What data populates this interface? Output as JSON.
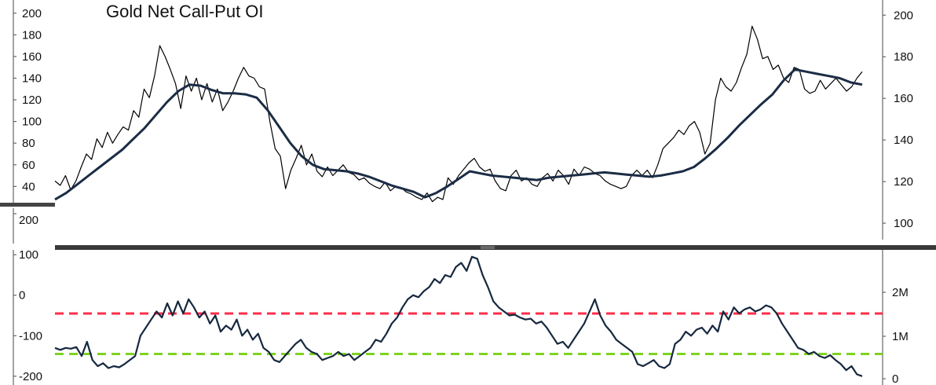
{
  "chart_data": [
    {
      "type": "line",
      "title": "Gold Net Call-Put OI",
      "left_axis": {
        "ticks": [
          40,
          60,
          80,
          100,
          120,
          140,
          160,
          180,
          200
        ],
        "range": [
          25,
          202
        ]
      },
      "right_axis": {
        "ticks": [
          100,
          120,
          140,
          160,
          180,
          200
        ],
        "range": [
          97,
          202
        ]
      },
      "series": [
        {
          "axis": "left",
          "color": "#000000",
          "values": [
            45,
            41,
            50,
            37,
            45,
            58,
            70,
            65,
            84,
            76,
            90,
            80,
            88,
            95,
            92,
            110,
            104,
            130,
            122,
            142,
            170,
            160,
            148,
            135,
            112,
            142,
            128,
            140,
            120,
            135,
            118,
            130,
            110,
            118,
            128,
            140,
            150,
            142,
            140,
            132,
            130,
            100,
            75,
            68,
            38,
            55,
            66,
            78,
            60,
            70,
            54,
            49,
            58,
            50,
            55,
            60,
            53,
            51,
            46,
            48,
            43,
            40,
            38,
            44,
            36,
            40,
            39,
            35,
            33,
            30,
            28,
            34,
            26,
            30,
            28,
            48,
            42,
            50,
            56,
            62,
            66,
            58,
            54,
            56,
            45,
            38,
            36,
            50,
            55,
            45,
            48,
            42,
            40,
            48,
            52,
            45,
            55,
            50,
            42,
            56,
            50,
            58,
            56,
            52,
            50,
            45,
            42,
            40,
            38,
            40,
            50,
            55,
            50,
            55,
            48,
            60,
            75,
            80,
            85,
            92,
            88,
            96,
            100,
            90,
            70,
            80,
            120,
            140,
            132,
            128,
            136,
            150,
            162,
            188,
            176,
            158,
            160,
            148,
            152,
            140,
            136,
            150,
            148,
            130,
            126,
            128,
            138,
            130,
            135,
            140,
            134,
            128,
            132,
            140,
            146
          ]
        },
        {
          "axis": "left",
          "color": "#1b2c45",
          "values": [
            28,
            34,
            42,
            50,
            58,
            66,
            74,
            84,
            94,
            106,
            118,
            128,
            134,
            133,
            129,
            126,
            126,
            125,
            122,
            110,
            95,
            80,
            68,
            60,
            56,
            55,
            54,
            52,
            49,
            45,
            41,
            38,
            35,
            30,
            34,
            40,
            47,
            54,
            52,
            50,
            49,
            48,
            47,
            46,
            48,
            49,
            50,
            51,
            52,
            53,
            52,
            51,
            50,
            49,
            50,
            52,
            54,
            58,
            66,
            75,
            85,
            96,
            106,
            116,
            125,
            138,
            148,
            146,
            144,
            142,
            140,
            136,
            134
          ]
        }
      ],
      "panel_separator_label": "200"
    },
    {
      "type": "line",
      "left_axis": {
        "ticks": [
          -200,
          -100,
          0,
          100
        ],
        "range": [
          -210,
          112
        ]
      },
      "right_axis": {
        "ticks": [
          "0",
          "1M",
          "2M"
        ],
        "range": [
          -210,
          112
        ]
      },
      "series": [
        {
          "axis": "left",
          "color": "#16283f",
          "values": [
            -130,
            -135,
            -130,
            -132,
            -128,
            -150,
            -115,
            -160,
            -175,
            -168,
            -180,
            -175,
            -178,
            -170,
            -160,
            -150,
            -100,
            -80,
            -60,
            -40,
            -55,
            -20,
            -50,
            -15,
            -45,
            -10,
            -30,
            -55,
            -40,
            -70,
            -50,
            -90,
            -75,
            -85,
            -60,
            -100,
            -85,
            -110,
            -95,
            -130,
            -140,
            -160,
            -165,
            -150,
            -135,
            -120,
            -110,
            -130,
            -140,
            -145,
            -160,
            -155,
            -150,
            -140,
            -150,
            -145,
            -160,
            -150,
            -140,
            -130,
            -110,
            -115,
            -95,
            -70,
            -55,
            -30,
            -10,
            0,
            -5,
            10,
            20,
            40,
            30,
            50,
            45,
            70,
            80,
            60,
            95,
            90,
            50,
            20,
            -15,
            -30,
            -40,
            -50,
            -48,
            -55,
            -60,
            -58,
            -70,
            -65,
            -80,
            -100,
            -120,
            -115,
            -130,
            -110,
            -90,
            -70,
            -40,
            -10,
            -50,
            -75,
            -90,
            -110,
            -120,
            -130,
            -140,
            -170,
            -175,
            -168,
            -160,
            -175,
            -180,
            -170,
            -120,
            -110,
            -90,
            -100,
            -85,
            -80,
            -95,
            -75,
            -90,
            -40,
            -60,
            -30,
            -45,
            -35,
            -30,
            -40,
            -35,
            -25,
            -30,
            -45,
            -70,
            -90,
            -110,
            -130,
            -135,
            -145,
            -140,
            -150,
            -155,
            -148,
            -160,
            -170,
            -185,
            -175,
            -195,
            -200
          ]
        }
      ],
      "reference_lines": [
        {
          "value": -45,
          "color": "#ff2d4a",
          "style": "dashed"
        },
        {
          "value": -145,
          "color": "#7ed321",
          "style": "dashed"
        }
      ]
    }
  ]
}
